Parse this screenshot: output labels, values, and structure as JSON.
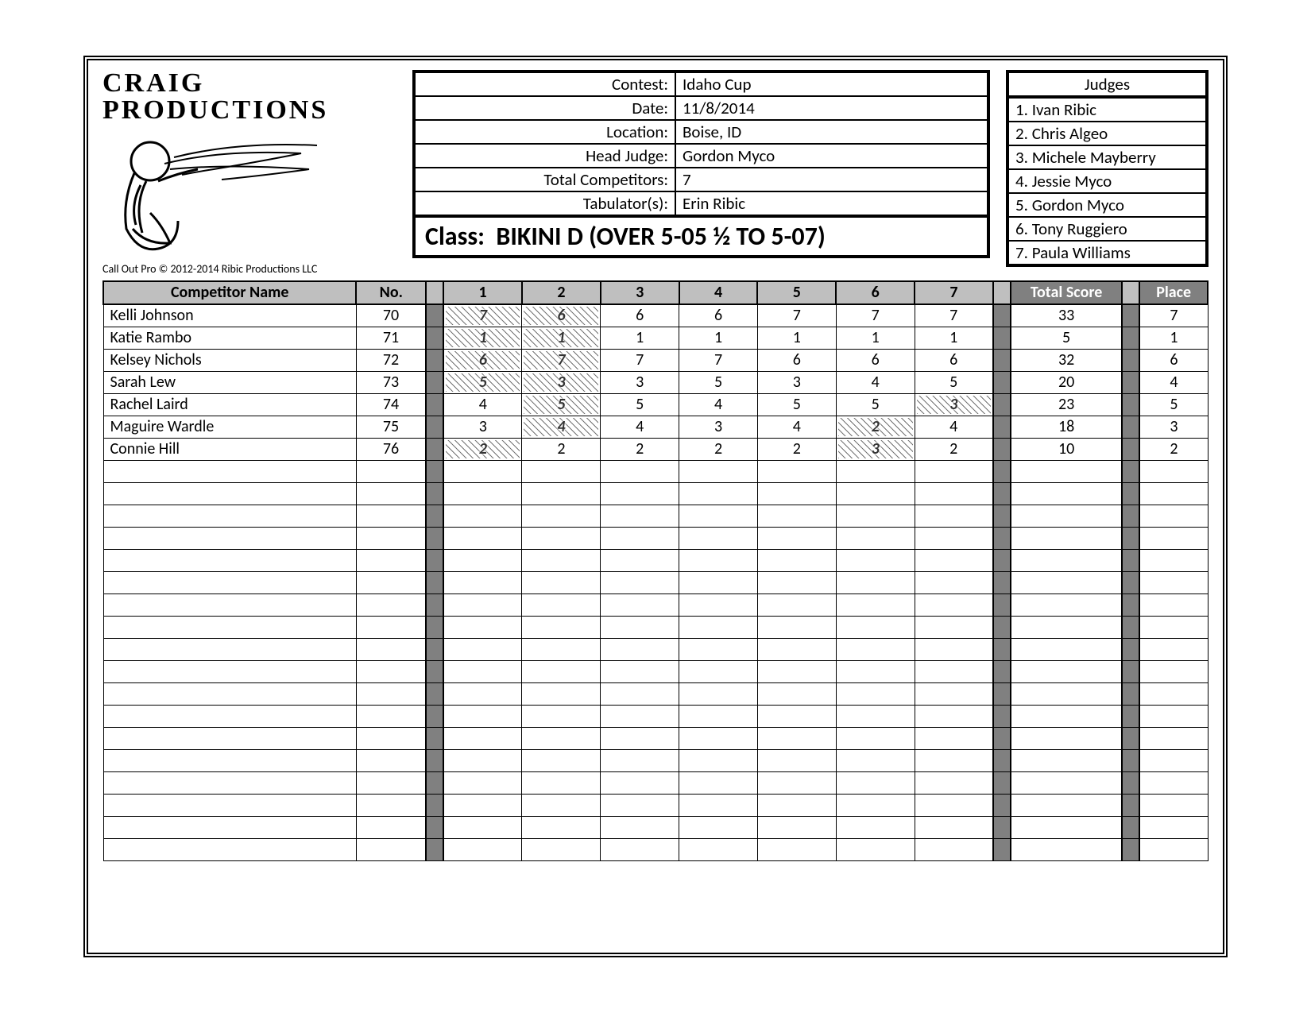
{
  "logo": {
    "line1": "CRAIG",
    "line2": "PRODUCTIONS"
  },
  "copyright": "Call Out Pro © 2012-2014 Ribic Productions LLC",
  "info": {
    "labels": {
      "contest": "Contest:",
      "date": "Date:",
      "location": "Location:",
      "head_judge": "Head Judge:",
      "total_competitors": "Total Competitors:",
      "tabulators": "Tabulator(s):"
    },
    "values": {
      "contest": "Idaho Cup",
      "date": "11/8/2014",
      "location": "Boise, ID",
      "head_judge": "Gordon Myco",
      "total_competitors": "7",
      "tabulators": "Erin Ribic"
    },
    "class_label": "Class:",
    "class_value": "BIKINI D (OVER 5-05 ½ TO 5-07)"
  },
  "judges": {
    "header": "Judges",
    "list": [
      "1.  Ivan Ribic",
      "2.  Chris Algeo",
      "3.  Michele Mayberry",
      "4.  Jessie Myco",
      "5.  Gordon Myco",
      "6.  Tony Ruggiero",
      "7.  Paula Williams"
    ]
  },
  "score": {
    "headers": {
      "name": "Competitor Name",
      "no": "No.",
      "j": [
        "1",
        "2",
        "3",
        "4",
        "5",
        "6",
        "7"
      ],
      "total": "Total Score",
      "place": "Place"
    },
    "num_judges": 7,
    "empty_rows": 18,
    "rows": [
      {
        "name": "Kelli Johnson",
        "no": "70",
        "scores": [
          "7",
          "6",
          "6",
          "6",
          "7",
          "7",
          "7"
        ],
        "dropped": [
          0,
          1
        ],
        "total": "33",
        "place": "7"
      },
      {
        "name": "Katie Rambo",
        "no": "71",
        "scores": [
          "1",
          "1",
          "1",
          "1",
          "1",
          "1",
          "1"
        ],
        "dropped": [
          0,
          1
        ],
        "total": "5",
        "place": "1"
      },
      {
        "name": "Kelsey Nichols",
        "no": "72",
        "scores": [
          "6",
          "7",
          "7",
          "7",
          "6",
          "6",
          "6"
        ],
        "dropped": [
          0,
          1
        ],
        "total": "32",
        "place": "6"
      },
      {
        "name": "Sarah Lew",
        "no": "73",
        "scores": [
          "5",
          "3",
          "3",
          "5",
          "3",
          "4",
          "5"
        ],
        "dropped": [
          0,
          1
        ],
        "total": "20",
        "place": "4"
      },
      {
        "name": "Rachel Laird",
        "no": "74",
        "scores": [
          "4",
          "5",
          "5",
          "4",
          "5",
          "5",
          "3"
        ],
        "dropped": [
          1,
          6
        ],
        "total": "23",
        "place": "5"
      },
      {
        "name": "Maguire Wardle",
        "no": "75",
        "scores": [
          "3",
          "4",
          "4",
          "3",
          "4",
          "2",
          "4"
        ],
        "dropped": [
          1,
          5
        ],
        "total": "18",
        "place": "3"
      },
      {
        "name": "Connie Hill",
        "no": "76",
        "scores": [
          "2",
          "2",
          "2",
          "2",
          "2",
          "3",
          "2"
        ],
        "dropped": [
          0,
          5
        ],
        "total": "10",
        "place": "2"
      }
    ]
  },
  "colors": {
    "header_gray": "#bfbfbf",
    "gap_gray": "#808080",
    "background": "#ffffff"
  }
}
